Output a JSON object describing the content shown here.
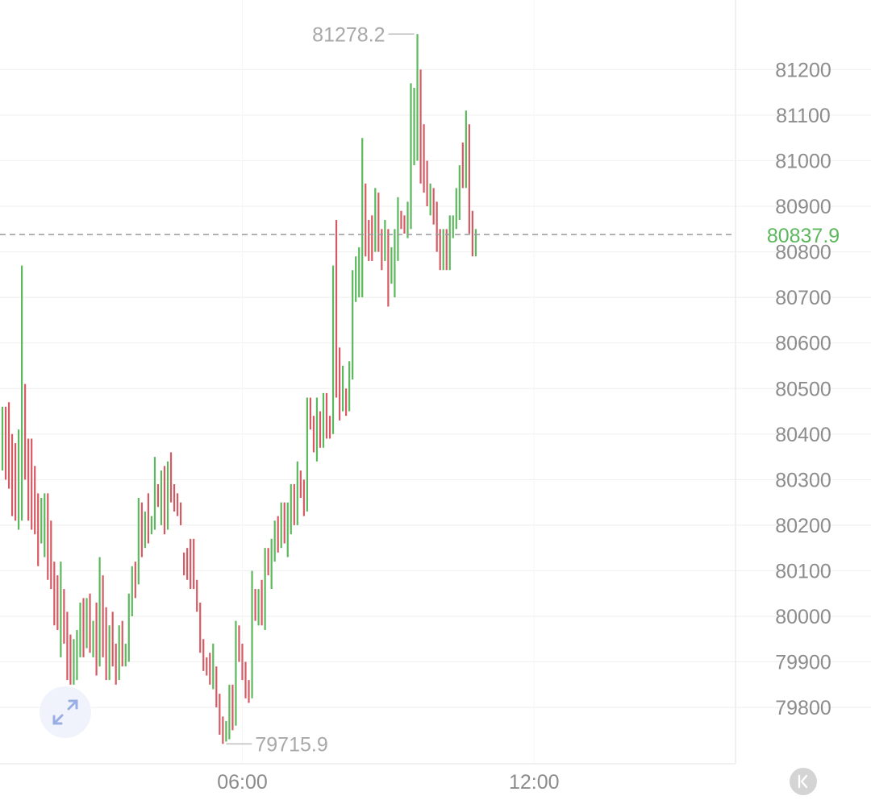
{
  "chart_data": {
    "type": "ohlc",
    "y_ticks": [
      79800,
      79900,
      80000,
      80100,
      80200,
      80300,
      80400,
      80500,
      80600,
      80700,
      80800,
      80900,
      81000,
      81100,
      81200
    ],
    "y_tick_labels": [
      "79800",
      "79900",
      "80000",
      "80100",
      "80200",
      "80300",
      "80400",
      "80500",
      "80600",
      "80700",
      "80800",
      "80900",
      "81000",
      "81100",
      "81200"
    ],
    "ylim": [
      79590,
      81345
    ],
    "x_ticks": [
      {
        "label": "06:00",
        "index": 74
      },
      {
        "label": "12:00",
        "index": 164
      }
    ],
    "last_price": 80837.9,
    "last_price_label": "80837.9",
    "max_label": "81278.2",
    "min_label": "79715.9",
    "grid": true,
    "up_color": "#5cb85c",
    "down_color": "#d65a63",
    "price_line_color": "#9a9a9a",
    "bars": [
      [
        80400,
        80460,
        80320,
        80450
      ],
      [
        80450,
        80460,
        80300,
        80330
      ],
      [
        80330,
        80470,
        80280,
        80300
      ],
      [
        80300,
        80400,
        80220,
        80260
      ],
      [
        80260,
        80380,
        80210,
        80250
      ],
      [
        80250,
        80410,
        80190,
        80370
      ],
      [
        80370,
        80770,
        80210,
        80380
      ],
      [
        80380,
        80510,
        80300,
        80350
      ],
      [
        80350,
        80390,
        80210,
        80300
      ],
      [
        80300,
        80390,
        80190,
        80280
      ],
      [
        80280,
        80330,
        80180,
        80230
      ],
      [
        80230,
        80270,
        80110,
        80180
      ],
      [
        80180,
        80260,
        80160,
        80200
      ],
      [
        80200,
        80270,
        80130,
        80240
      ],
      [
        80240,
        80270,
        80080,
        80150
      ],
      [
        80150,
        80210,
        80060,
        80100
      ],
      [
        80100,
        80120,
        79980,
        80050
      ],
      [
        80050,
        80090,
        79970,
        79990
      ],
      [
        79990,
        80120,
        79910,
        80050
      ],
      [
        80050,
        80060,
        79940,
        79970
      ],
      [
        79970,
        80010,
        79860,
        79920
      ],
      [
        79920,
        79960,
        79850,
        79870
      ],
      [
        79870,
        79950,
        79850,
        79900
      ],
      [
        79900,
        79970,
        79860,
        79950
      ],
      [
        79950,
        80030,
        79910,
        80000
      ],
      [
        80000,
        80040,
        79910,
        79950
      ],
      [
        79950,
        80040,
        79930,
        79980
      ],
      [
        79980,
        80050,
        79920,
        79940
      ],
      [
        79940,
        79990,
        79910,
        79960
      ],
      [
        79960,
        80030,
        79870,
        79910
      ],
      [
        79910,
        80130,
        79890,
        80080
      ],
      [
        80080,
        80090,
        79910,
        79930
      ],
      [
        79930,
        80020,
        79860,
        79900
      ],
      [
        79900,
        79980,
        79860,
        79970
      ],
      [
        79970,
        80010,
        79890,
        79910
      ],
      [
        79910,
        79940,
        79850,
        79880
      ],
      [
        79880,
        79980,
        79860,
        79950
      ],
      [
        79950,
        79990,
        79890,
        79900
      ],
      [
        79900,
        79940,
        79890,
        79910
      ],
      [
        79910,
        80050,
        79900,
        80040
      ],
      [
        80040,
        80110,
        80000,
        80090
      ],
      [
        80090,
        80120,
        80040,
        80080
      ],
      [
        80080,
        80260,
        80070,
        80250
      ],
      [
        80250,
        80250,
        80130,
        80150
      ],
      [
        80150,
        80230,
        80150,
        80210
      ],
      [
        80210,
        80270,
        80160,
        80170
      ],
      [
        80170,
        80220,
        80180,
        80200
      ],
      [
        80200,
        80350,
        80190,
        80280
      ],
      [
        80280,
        80290,
        80240,
        80250
      ],
      [
        80250,
        80320,
        80200,
        80270
      ],
      [
        80270,
        80330,
        80180,
        80260
      ],
      [
        80260,
        80340,
        80190,
        80300
      ],
      [
        80300,
        80360,
        80250,
        80280
      ],
      [
        80280,
        80290,
        80230,
        80260
      ],
      [
        80260,
        80270,
        80220,
        80240
      ],
      [
        80240,
        80250,
        80200,
        80130
      ],
      [
        80130,
        80140,
        80090,
        80100
      ],
      [
        80100,
        80150,
        80080,
        80090
      ],
      [
        80090,
        80170,
        80060,
        80080
      ],
      [
        80080,
        80170,
        80060,
        80070
      ],
      [
        80070,
        80080,
        80010,
        80020
      ],
      [
        80020,
        80030,
        79920,
        79940
      ],
      [
        79940,
        79950,
        79880,
        79900
      ],
      [
        79900,
        79910,
        79870,
        79890
      ],
      [
        79890,
        79920,
        79850,
        79860
      ],
      [
        79860,
        79940,
        79840,
        79880
      ],
      [
        79880,
        79890,
        79800,
        79820
      ],
      [
        79820,
        79830,
        79740,
        79760
      ],
      [
        79760,
        79780,
        79720,
        79730
      ],
      [
        79730,
        79770,
        79725,
        79760
      ],
      [
        79760,
        79850,
        79730,
        79810
      ],
      [
        79810,
        79850,
        79750,
        79780
      ],
      [
        79780,
        79990,
        79760,
        79960
      ],
      [
        79960,
        79980,
        79900,
        79920
      ],
      [
        79920,
        79940,
        79860,
        79890
      ],
      [
        79890,
        79900,
        79820,
        79840
      ],
      [
        79840,
        79860,
        79810,
        79830
      ],
      [
        79830,
        80100,
        79820,
        80080
      ],
      [
        80080,
        80060,
        79990,
        80010
      ],
      [
        80010,
        80060,
        79980,
        80040
      ],
      [
        80040,
        80080,
        79980,
        80000
      ],
      [
        80000,
        80150,
        79970,
        80130
      ],
      [
        80130,
        80150,
        80090,
        80110
      ],
      [
        80110,
        80170,
        80060,
        80140
      ],
      [
        80140,
        80210,
        80120,
        80180
      ],
      [
        80180,
        80220,
        80140,
        80160
      ],
      [
        80160,
        80250,
        80150,
        80220
      ],
      [
        80220,
        80250,
        80160,
        80180
      ],
      [
        80180,
        80250,
        80130,
        80210
      ],
      [
        80210,
        80290,
        80180,
        80260
      ],
      [
        80260,
        80290,
        80200,
        80230
      ],
      [
        80230,
        80340,
        80200,
        80300
      ],
      [
        80300,
        80320,
        80260,
        80280
      ],
      [
        80280,
        80300,
        80220,
        80250
      ],
      [
        80250,
        80480,
        80230,
        80450
      ],
      [
        80450,
        80480,
        80410,
        80420
      ],
      [
        80420,
        80440,
        80360,
        80380
      ],
      [
        80380,
        80480,
        80340,
        80450
      ],
      [
        80450,
        80450,
        80370,
        80390
      ],
      [
        80390,
        80490,
        80370,
        80470
      ],
      [
        80470,
        80490,
        80390,
        80420
      ],
      [
        80420,
        80440,
        80390,
        80410
      ],
      [
        80410,
        80770,
        80400,
        80740
      ],
      [
        80740,
        80870,
        80480,
        80520
      ],
      [
        80520,
        80590,
        80430,
        80470
      ],
      [
        80470,
        80550,
        80450,
        80500
      ],
      [
        80500,
        80500,
        80440,
        80460
      ],
      [
        80460,
        80560,
        80450,
        80540
      ],
      [
        80540,
        80760,
        80520,
        80740
      ],
      [
        80740,
        80790,
        80690,
        80760
      ],
      [
        80760,
        80810,
        80700,
        80780
      ],
      [
        80780,
        81050,
        80700,
        80940
      ],
      [
        80940,
        80950,
        80790,
        80830
      ],
      [
        80830,
        80870,
        80780,
        80820
      ],
      [
        80820,
        80880,
        80780,
        80810
      ],
      [
        80810,
        80940,
        80800,
        80900
      ],
      [
        80900,
        80930,
        80800,
        80820
      ],
      [
        80820,
        80850,
        80760,
        80780
      ],
      [
        80780,
        80870,
        80780,
        80840
      ],
      [
        80840,
        80850,
        80680,
        80720
      ],
      [
        80720,
        80810,
        80730,
        80760
      ],
      [
        80760,
        80850,
        80700,
        80820
      ],
      [
        80820,
        80920,
        80780,
        80880
      ],
      [
        80880,
        80890,
        80850,
        80870
      ],
      [
        80870,
        80880,
        80840,
        80860
      ],
      [
        80860,
        80910,
        80830,
        80900
      ],
      [
        80900,
        81170,
        80850,
        81020
      ],
      [
        81020,
        81160,
        80990,
        81100
      ],
      [
        81100,
        81278,
        81000,
        81200
      ],
      [
        81200,
        81200,
        80950,
        81010
      ],
      [
        81010,
        81080,
        80930,
        80960
      ],
      [
        80960,
        81000,
        80900,
        80920
      ],
      [
        80920,
        80950,
        80880,
        80940
      ],
      [
        80940,
        80940,
        80860,
        80890
      ],
      [
        80890,
        80910,
        80800,
        80840
      ],
      [
        80840,
        80850,
        80760,
        80780
      ],
      [
        80780,
        80850,
        80760,
        80800
      ],
      [
        80800,
        80850,
        80760,
        80780
      ],
      [
        80780,
        80880,
        80760,
        80860
      ],
      [
        80860,
        80880,
        80830,
        80870
      ],
      [
        80870,
        80940,
        80850,
        80920
      ],
      [
        80920,
        80990,
        80870,
        81040
      ],
      [
        81040,
        81040,
        80940,
        80960
      ],
      [
        80960,
        81110,
        80940,
        81080
      ],
      [
        81080,
        81080,
        80840,
        80890
      ],
      [
        80890,
        80890,
        80790,
        80820
      ],
      [
        80820,
        80850,
        80790,
        80838
      ]
    ]
  }
}
